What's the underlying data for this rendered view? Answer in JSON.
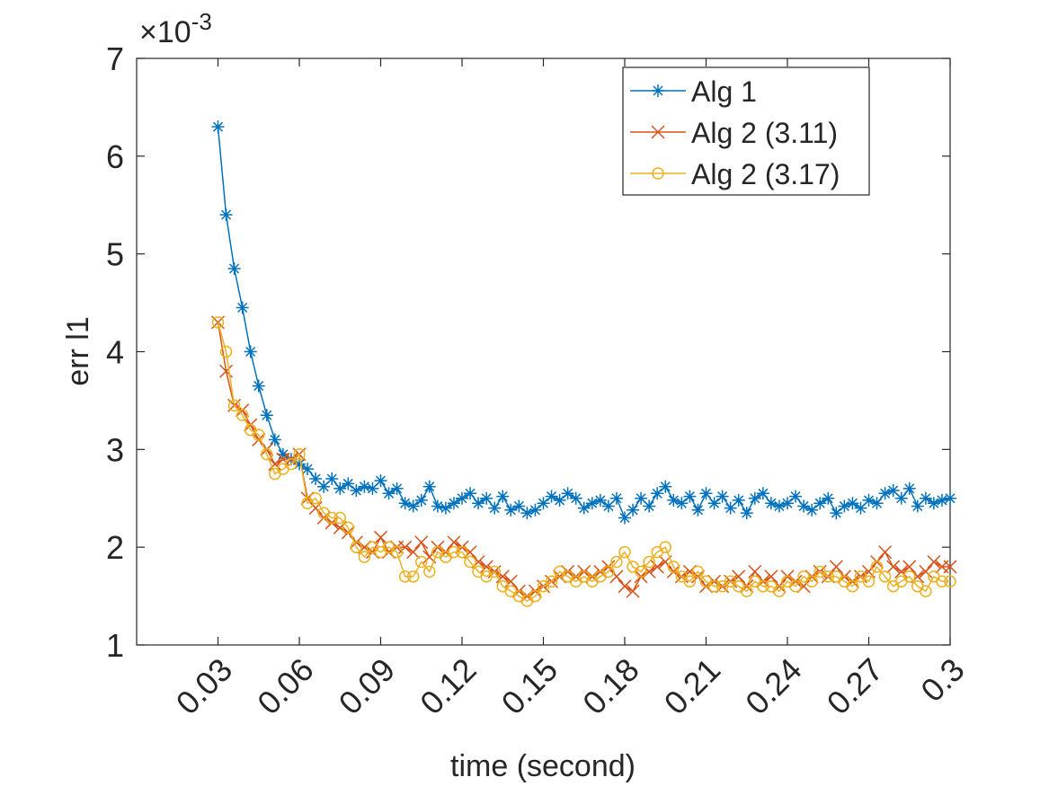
{
  "chart_data": {
    "type": "line",
    "xlabel": "time (second)",
    "ylabel": "err l1",
    "y_multiplier": {
      "base": "×10",
      "exponent": "-3"
    },
    "xlim": [
      0,
      0.3
    ],
    "ylim": [
      1,
      7
    ],
    "xticks": [
      0.03,
      0.06,
      0.09,
      0.12,
      0.15,
      0.18,
      0.21,
      0.24,
      0.27,
      0.3
    ],
    "yticks": [
      1,
      2,
      3,
      4,
      5,
      6,
      7
    ],
    "legend": "top-right",
    "x": [
      0.03,
      0.033,
      0.036,
      0.039,
      0.042,
      0.045,
      0.048,
      0.051,
      0.054,
      0.057,
      0.06,
      0.063,
      0.066,
      0.069,
      0.072,
      0.075,
      0.078,
      0.081,
      0.084,
      0.087,
      0.09,
      0.093,
      0.096,
      0.099,
      0.102,
      0.105,
      0.108,
      0.111,
      0.114,
      0.117,
      0.12,
      0.123,
      0.126,
      0.129,
      0.132,
      0.135,
      0.138,
      0.141,
      0.144,
      0.147,
      0.15,
      0.153,
      0.156,
      0.159,
      0.162,
      0.165,
      0.168,
      0.171,
      0.174,
      0.177,
      0.18,
      0.183,
      0.186,
      0.189,
      0.192,
      0.195,
      0.198,
      0.201,
      0.204,
      0.207,
      0.21,
      0.213,
      0.216,
      0.219,
      0.222,
      0.225,
      0.228,
      0.231,
      0.234,
      0.237,
      0.24,
      0.243,
      0.246,
      0.249,
      0.252,
      0.255,
      0.258,
      0.261,
      0.264,
      0.267,
      0.27,
      0.273,
      0.276,
      0.279,
      0.282,
      0.285,
      0.288,
      0.291,
      0.294,
      0.297,
      0.3
    ],
    "series": [
      {
        "name": "Alg 1",
        "color": "#0072bd",
        "marker": "asterisk",
        "values": [
          6.3,
          5.4,
          4.85,
          4.45,
          4.0,
          3.65,
          3.35,
          3.1,
          2.95,
          2.9,
          2.85,
          2.8,
          2.7,
          2.62,
          2.7,
          2.6,
          2.65,
          2.58,
          2.62,
          2.6,
          2.68,
          2.55,
          2.6,
          2.45,
          2.42,
          2.48,
          2.62,
          2.42,
          2.4,
          2.45,
          2.5,
          2.55,
          2.45,
          2.5,
          2.4,
          2.52,
          2.38,
          2.42,
          2.35,
          2.38,
          2.45,
          2.52,
          2.48,
          2.55,
          2.5,
          2.4,
          2.45,
          2.48,
          2.42,
          2.5,
          2.3,
          2.38,
          2.5,
          2.42,
          2.55,
          2.62,
          2.48,
          2.45,
          2.52,
          2.38,
          2.55,
          2.45,
          2.52,
          2.4,
          2.48,
          2.35,
          2.5,
          2.55,
          2.45,
          2.42,
          2.45,
          2.52,
          2.42,
          2.38,
          2.45,
          2.5,
          2.35,
          2.42,
          2.45,
          2.4,
          2.48,
          2.45,
          2.55,
          2.58,
          2.5,
          2.6,
          2.42,
          2.5,
          2.45,
          2.48,
          2.5
        ]
      },
      {
        "name": "Alg 2 (3.11)",
        "color": "#d95319",
        "marker": "x",
        "values": [
          4.3,
          3.8,
          3.45,
          3.4,
          3.25,
          3.1,
          3.0,
          2.85,
          2.9,
          2.9,
          2.95,
          2.5,
          2.4,
          2.3,
          2.25,
          2.2,
          2.15,
          2.05,
          2.0,
          1.95,
          2.1,
          1.95,
          2.0,
          2.0,
          1.95,
          2.05,
          1.9,
          2.0,
          1.95,
          2.05,
          2.0,
          1.95,
          1.85,
          1.8,
          1.75,
          1.7,
          1.65,
          1.55,
          1.5,
          1.55,
          1.6,
          1.65,
          1.7,
          1.75,
          1.7,
          1.75,
          1.7,
          1.75,
          1.8,
          1.7,
          1.6,
          1.55,
          1.7,
          1.75,
          1.8,
          1.85,
          1.75,
          1.7,
          1.75,
          1.7,
          1.6,
          1.65,
          1.6,
          1.65,
          1.7,
          1.6,
          1.75,
          1.65,
          1.7,
          1.6,
          1.7,
          1.65,
          1.6,
          1.7,
          1.75,
          1.7,
          1.8,
          1.7,
          1.65,
          1.7,
          1.75,
          1.85,
          1.95,
          1.8,
          1.75,
          1.8,
          1.7,
          1.75,
          1.85,
          1.8,
          1.8
        ]
      },
      {
        "name": "Alg 2 (3.17)",
        "color": "#edb120",
        "marker": "circle",
        "values": [
          4.3,
          4.0,
          3.45,
          3.35,
          3.2,
          3.15,
          2.95,
          2.75,
          2.8,
          2.85,
          2.95,
          2.45,
          2.5,
          2.35,
          2.3,
          2.3,
          2.2,
          2.0,
          1.9,
          2.0,
          1.95,
          2.0,
          1.95,
          1.7,
          1.7,
          1.85,
          1.75,
          1.95,
          1.9,
          1.95,
          1.95,
          1.85,
          1.75,
          1.7,
          1.75,
          1.6,
          1.55,
          1.5,
          1.45,
          1.5,
          1.6,
          1.65,
          1.75,
          1.7,
          1.65,
          1.7,
          1.65,
          1.7,
          1.75,
          1.85,
          1.95,
          1.8,
          1.75,
          1.85,
          1.95,
          2.0,
          1.8,
          1.7,
          1.65,
          1.75,
          1.65,
          1.6,
          1.6,
          1.65,
          1.6,
          1.55,
          1.65,
          1.6,
          1.6,
          1.55,
          1.65,
          1.6,
          1.7,
          1.65,
          1.75,
          1.7,
          1.7,
          1.65,
          1.6,
          1.7,
          1.65,
          1.8,
          1.7,
          1.6,
          1.65,
          1.7,
          1.6,
          1.55,
          1.7,
          1.65,
          1.65
        ]
      }
    ]
  }
}
